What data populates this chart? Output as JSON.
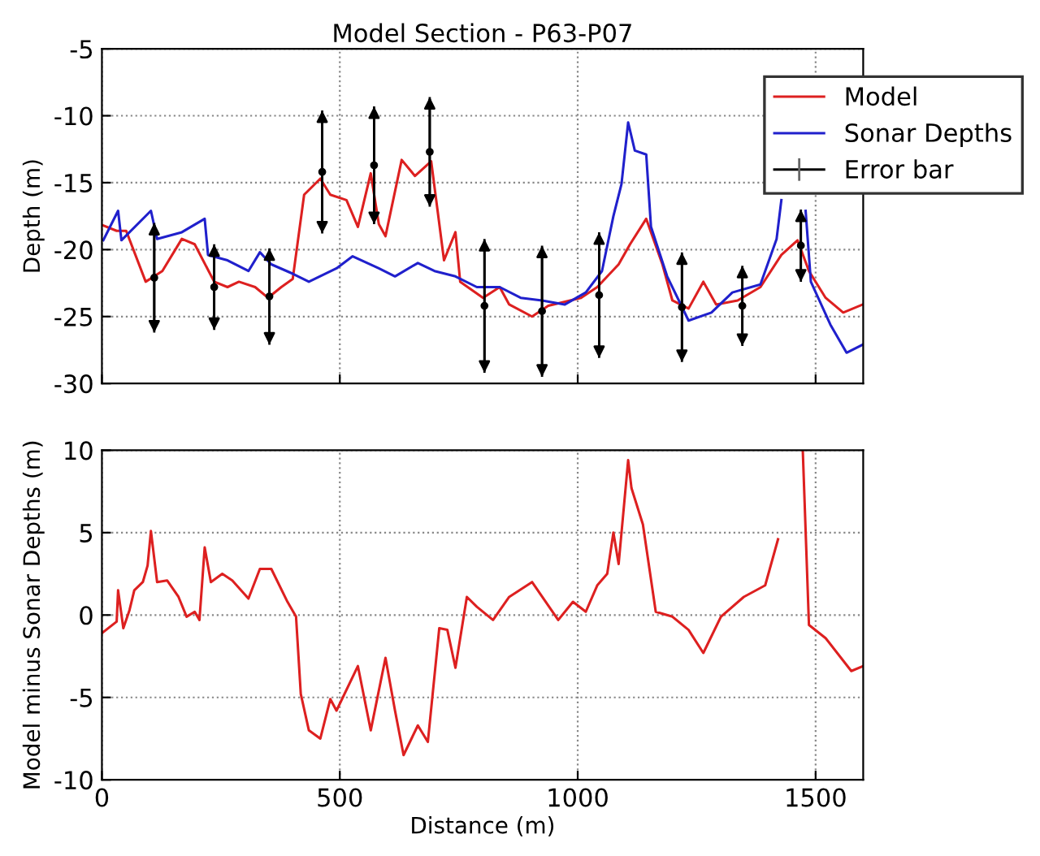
{
  "chart_data": [
    {
      "type": "line",
      "title": "Model Section - P63-P07",
      "ylabel": "Depth (m)",
      "xlim": [
        0,
        1600
      ],
      "xticks": [
        0,
        500,
        1000,
        1500
      ],
      "ylim": [
        -30,
        -5
      ],
      "yticks": [
        -30,
        -25,
        -20,
        -15,
        -10,
        -5
      ],
      "tick_labels": "y",
      "grid": true,
      "legend": "top right",
      "marker": "none",
      "line_style": "solid",
      "series": [
        {
          "name": "Model",
          "color": "#dd2020",
          "x": [
            3,
            31,
            51,
            92,
            127,
            168,
            195,
            236,
            264,
            288,
            322,
            349,
            377,
            401,
            425,
            459,
            480,
            514,
            538,
            565,
            582,
            596,
            630,
            658,
            692,
            719,
            743,
            753,
            801,
            836,
            856,
            904,
            938,
            1007,
            1041,
            1086,
            1110,
            1144,
            1178,
            1199,
            1233,
            1264,
            1291,
            1336,
            1384,
            1428,
            1462,
            1486,
            1521,
            1558,
            1599
          ],
          "values": [
            -18.2,
            -18.6,
            -18.6,
            -22.4,
            -21.6,
            -19.2,
            -19.6,
            -22.4,
            -22.8,
            -22.4,
            -22.8,
            -23.6,
            -22.8,
            -22.2,
            -15.9,
            -14.7,
            -15.9,
            -16.3,
            -18.3,
            -14.3,
            -18.1,
            -19.0,
            -13.3,
            -14.5,
            -13.4,
            -20.8,
            -18.7,
            -22.4,
            -23.6,
            -22.8,
            -24.1,
            -25.0,
            -24.2,
            -23.6,
            -22.8,
            -21.1,
            -19.6,
            -17.7,
            -21.1,
            -23.8,
            -24.4,
            -22.4,
            -24.1,
            -23.8,
            -22.8,
            -20.4,
            -19.3,
            -21.6,
            -23.6,
            -24.7,
            -24.1
          ]
        },
        {
          "name": "Sonar Depths",
          "color": "#2020cc",
          "x": [
            3,
            34,
            41,
            103,
            116,
            168,
            216,
            223,
            264,
            308,
            332,
            356,
            401,
            435,
            493,
            527,
            582,
            616,
            664,
            699,
            743,
            788,
            836,
            880,
            925,
            973,
            1017,
            1051,
            1075,
            1092,
            1106,
            1120,
            1144,
            1154,
            1188,
            1233,
            1281,
            1325,
            1384,
            1418,
            1428,
            1450,
            1479,
            1490,
            1531,
            1565,
            1599
          ],
          "values": [
            -19.3,
            -17.1,
            -19.3,
            -17.1,
            -19.2,
            -18.7,
            -17.7,
            -20.4,
            -20.8,
            -21.6,
            -20.2,
            -21.1,
            -21.8,
            -22.4,
            -21.4,
            -20.5,
            -21.4,
            -22.0,
            -21.0,
            -21.6,
            -22.0,
            -22.8,
            -22.8,
            -23.6,
            -23.8,
            -24.1,
            -23.2,
            -21.6,
            -17.5,
            -15.1,
            -10.5,
            -12.6,
            -12.9,
            -18.3,
            -22.0,
            -25.3,
            -24.7,
            -23.2,
            -22.6,
            -19.2,
            -16.3,
            null,
            -17.1,
            -22.4,
            -25.6,
            -27.7,
            -27.1
          ]
        },
        {
          "name": "Error bar",
          "type": "scatter",
          "color": "#000000",
          "x": [
            110,
            236,
            352,
            463,
            572,
            689,
            804,
            925,
            1045,
            1219,
            1346,
            1469
          ],
          "values": [
            -22.1,
            -22.8,
            -23.5,
            -14.2,
            -13.7,
            -12.7,
            -24.2,
            -24.6,
            -23.4,
            -24.3,
            -24.2,
            -19.7
          ],
          "errors": [
            4.1,
            3.2,
            3.6,
            4.6,
            4.4,
            4.1,
            5.0,
            4.9,
            4.7,
            4.1,
            3.0,
            2.7
          ]
        }
      ]
    },
    {
      "type": "line",
      "xlabel": "Distance (m)",
      "ylabel": "Model minus Sonar Depths (m)",
      "xlim": [
        0,
        1600
      ],
      "xticks": [
        0,
        500,
        1000,
        1500
      ],
      "ylim": [
        -10,
        10
      ],
      "yticks": [
        -10,
        -5,
        0,
        5,
        10
      ],
      "grid": true,
      "marker": "none",
      "line_style": "solid",
      "series": [
        {
          "color": "#dd2020",
          "x": [
            0,
            31,
            34,
            45,
            58,
            68,
            86,
            96,
            103,
            116,
            137,
            161,
            178,
            195,
            205,
            216,
            229,
            253,
            274,
            308,
            332,
            356,
            390,
            408,
            418,
            435,
            459,
            480,
            493,
            538,
            565,
            596,
            616,
            634,
            664,
            685,
            709,
            726,
            743,
            767,
            788,
            822,
            856,
            904,
            959,
            990,
            1017,
            1041,
            1062,
            1075,
            1086,
            1106,
            1113,
            1137,
            1164,
            1199,
            1233,
            1264,
            1301,
            1349,
            1394,
            1421,
            1450,
            1473,
            1486,
            1521,
            1575,
            1600
          ],
          "values": [
            -1.1,
            -0.4,
            1.5,
            -0.8,
            0.3,
            1.5,
            2.0,
            3.0,
            5.1,
            2.0,
            2.1,
            1.1,
            -0.1,
            0.2,
            -0.3,
            4.1,
            2.0,
            2.5,
            2.1,
            1.0,
            2.8,
            2.8,
            0.8,
            -0.1,
            -4.8,
            -7.0,
            -7.5,
            -5.1,
            -5.8,
            -3.1,
            -7.0,
            -2.6,
            -5.8,
            -8.5,
            -6.7,
            -7.7,
            -0.8,
            -0.9,
            -3.2,
            1.1,
            0.5,
            -0.3,
            1.1,
            2.0,
            -0.3,
            0.8,
            0.2,
            1.8,
            2.5,
            5.0,
            3.1,
            9.4,
            7.7,
            5.5,
            0.2,
            -0.1,
            -0.9,
            -2.3,
            -0.1,
            1.1,
            1.8,
            4.6,
            null,
            10,
            -0.6,
            -1.4,
            -3.4,
            -3.1
          ]
        }
      ]
    }
  ]
}
